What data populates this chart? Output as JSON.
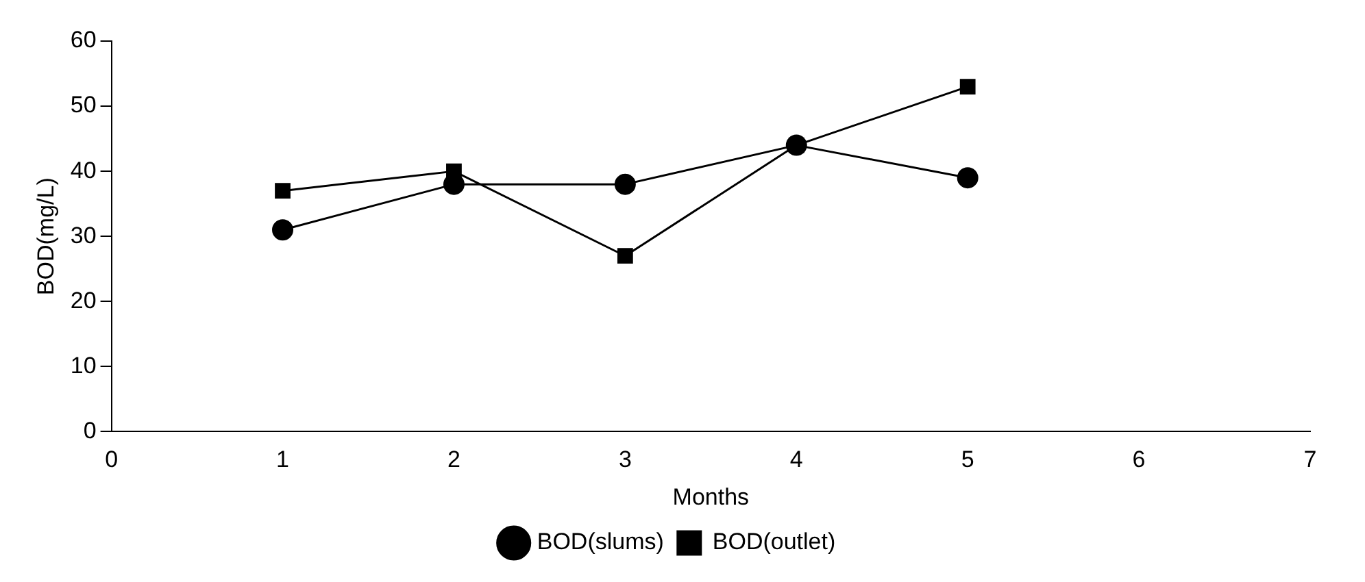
{
  "chart_data": {
    "type": "line",
    "xlabel": "Months",
    "ylabel": "BOD(mg/L)",
    "x": [
      1,
      2,
      3,
      4,
      5
    ],
    "series": [
      {
        "name": "BOD(slums)",
        "color": "#000000",
        "marker": "circle",
        "values": [
          31,
          38,
          38,
          44,
          39
        ]
      },
      {
        "name": "BOD(outlet)",
        "color": "#000000",
        "marker": "square",
        "values": [
          37,
          40,
          27,
          44,
          53
        ]
      }
    ],
    "xlim": [
      0,
      7
    ],
    "xticks": [
      0,
      1,
      2,
      3,
      4,
      5,
      6,
      7
    ],
    "ylim": [
      0,
      60
    ],
    "yticks": [
      0,
      10,
      20,
      30,
      40,
      50,
      60
    ],
    "grid": false,
    "legend": "bottom",
    "line_style": "solid"
  }
}
